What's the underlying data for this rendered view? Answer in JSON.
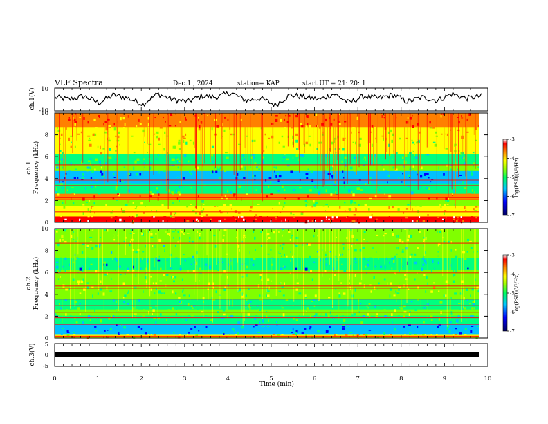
{
  "header": {
    "title": "VLF Spectra",
    "date": "Dec.1  , 2024",
    "station": "station= KAP",
    "start": "start  UT  =   21: 20: 1"
  },
  "chart_data": [
    {
      "type": "line",
      "panel": "waveform-ch1",
      "ylabel": "ch.1(V)",
      "ylim": [
        -10,
        10
      ],
      "yticks": [
        "10",
        "-10"
      ],
      "xlim": [
        0,
        10
      ],
      "series": [
        {
          "values": [
            3,
            1,
            4,
            -2,
            5,
            2,
            -3,
            6,
            1,
            -1,
            4,
            3,
            7,
            0,
            2,
            -4,
            5,
            3,
            1,
            6,
            -2,
            4,
            2,
            5,
            -1,
            3,
            0,
            6,
            2,
            4
          ]
        }
      ]
    },
    {
      "type": "heatmap",
      "panel": "spectrogram-ch1",
      "ylabel": "ch.1\nFrequency  (kHz)",
      "ylim": [
        0,
        10
      ],
      "yticks": [
        "0",
        "2",
        "4",
        "6",
        "8",
        "10"
      ],
      "xlim": [
        0,
        10
      ],
      "colorbar": {
        "label": "log(PSD)(V²/Hz)",
        "range": [
          -7,
          -3
        ],
        "ticks": [
          "-3",
          "-4",
          "-5",
          "-6",
          "-7"
        ]
      }
    },
    {
      "type": "heatmap",
      "panel": "spectrogram-ch2",
      "ylabel": "ch.2\nFrequency  (kHz)",
      "ylim": [
        0,
        10
      ],
      "yticks": [
        "0",
        "2",
        "4",
        "6",
        "8",
        "10"
      ],
      "xlim": [
        0,
        10
      ],
      "colorbar": {
        "label": "log(PSD)(V²/Hz)",
        "range": [
          -7,
          -3
        ],
        "ticks": [
          "-3",
          "-4",
          "-5",
          "-6",
          "-7"
        ]
      }
    },
    {
      "type": "line",
      "panel": "waveform-ch3",
      "ylabel": "ch.3(V)",
      "ylim": [
        -5,
        5
      ],
      "yticks": [
        "5",
        "0",
        "-5"
      ],
      "xlim": [
        0,
        10
      ],
      "series": [
        {
          "values": [
            -0.7,
            -0.7,
            -0.7
          ]
        }
      ]
    }
  ],
  "xaxis": {
    "label": "Time  (min)",
    "ticks": [
      "0",
      "1",
      "2",
      "3",
      "4",
      "5",
      "6",
      "7",
      "8",
      "9",
      "10"
    ]
  },
  "colors": {
    "scale": [
      "#000070",
      "#0000ff",
      "#00c0ff",
      "#00ff80",
      "#80ff00",
      "#ffff00",
      "#ff8000",
      "#ff0000",
      "#ffffff"
    ]
  }
}
